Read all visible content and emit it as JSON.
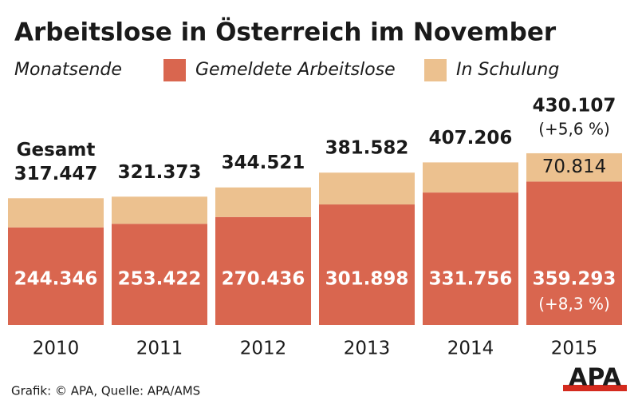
{
  "title": "Arbeitslose in Österreich im November",
  "source": "Grafik: © APA, Quelle: APA/AMS",
  "logo": "APA",
  "chart_data": {
    "type": "stacked_bar",
    "legend_title": "Monatsende",
    "categories": [
      "2010",
      "2011",
      "2012",
      "2013",
      "2014",
      "2015"
    ],
    "series": [
      {
        "name": "Gemeldete Arbeitslose",
        "color": "#d9664f",
        "values": [
          244346,
          253422,
          270436,
          301898,
          331756,
          359293
        ],
        "value_labels": [
          "244.346",
          "253.422",
          "270.436",
          "301.898",
          "331.756",
          "359.293"
        ]
      },
      {
        "name": "In Schulung",
        "color": "#ecc18f",
        "values": [
          73101,
          67951,
          74085,
          79684,
          75450,
          70814
        ],
        "value_labels": [
          null,
          null,
          null,
          null,
          null,
          "70.814"
        ]
      }
    ],
    "totals": {
      "values": [
        317447,
        321373,
        344521,
        381582,
        407206,
        430107
      ],
      "value_labels": [
        "317.447",
        "321.373",
        "344.521",
        "381.582",
        "407.206",
        "430.107"
      ]
    },
    "annotations": [
      "Gesamt",
      "(+5,6 %)",
      "(+8,3 %)"
    ]
  }
}
